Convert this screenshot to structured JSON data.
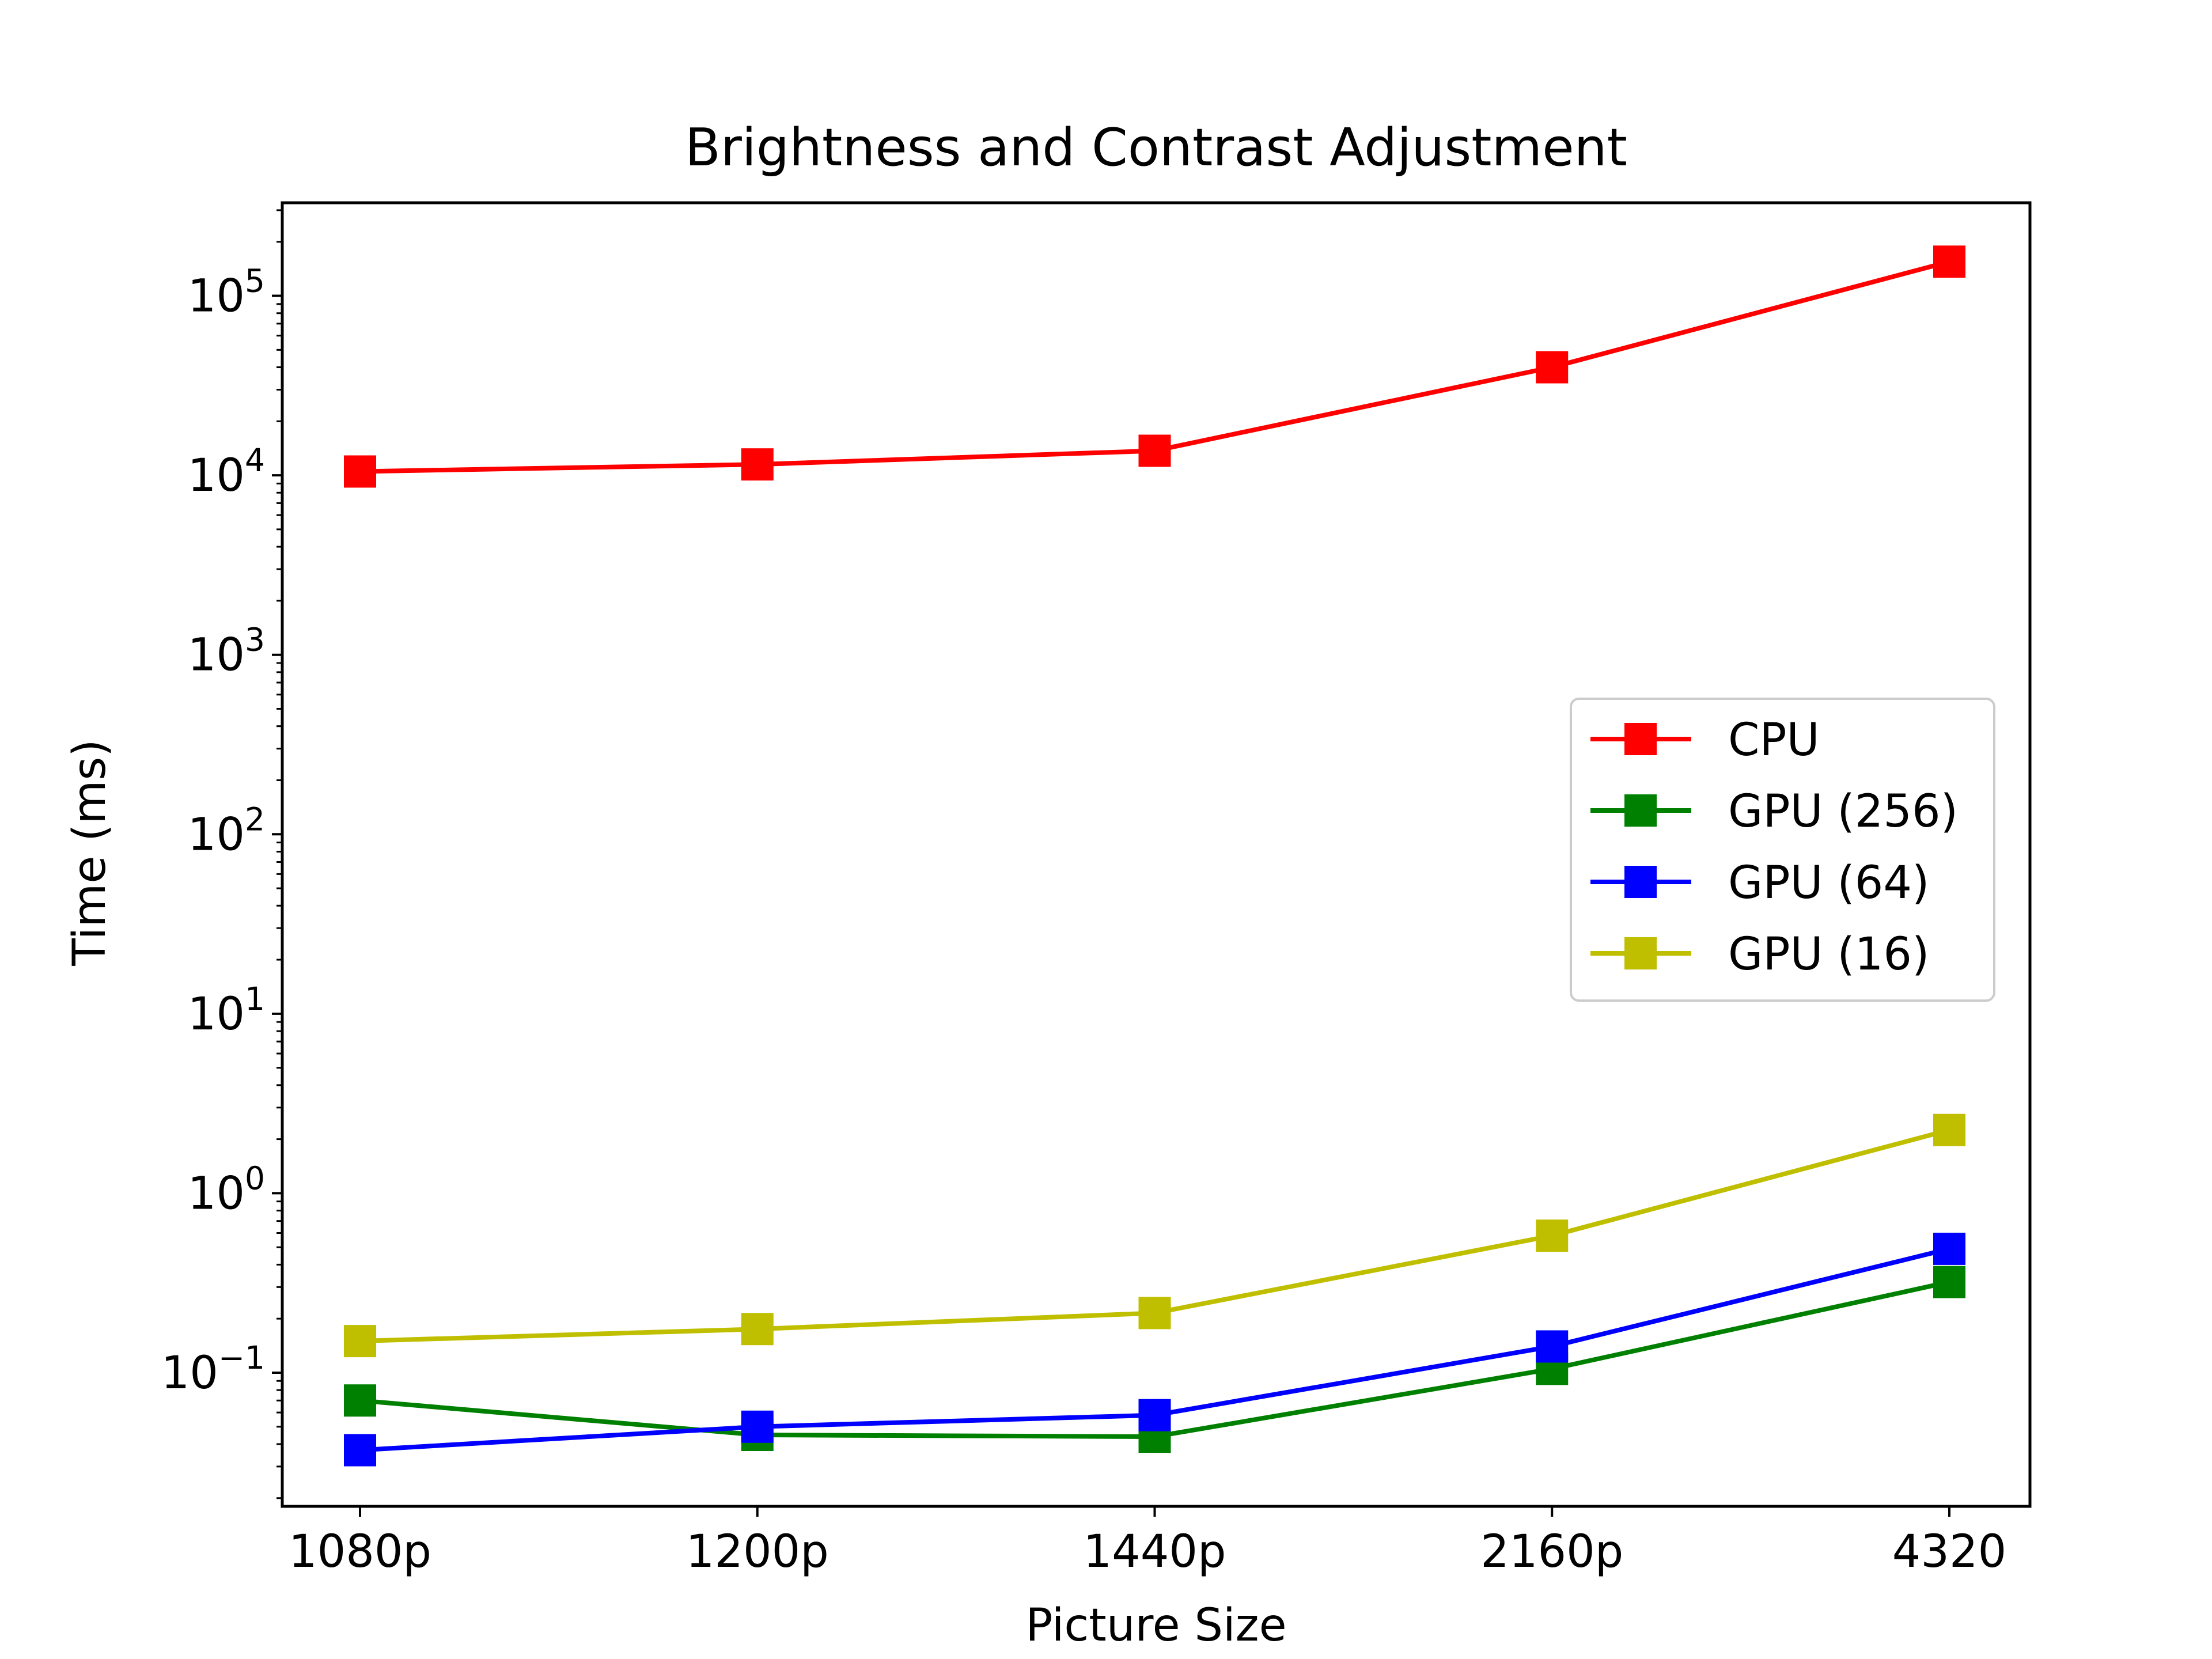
{
  "chart_data": {
    "type": "line",
    "title": "Brightness and Contrast Adjustment",
    "xlabel": "Picture Size",
    "ylabel": "Time (ms)",
    "categories": [
      "1080p",
      "1200p",
      "1440p",
      "2160p",
      "4320"
    ],
    "yscale": "log",
    "ylim": [
      0.018,
      330000
    ],
    "y_ticks": [
      {
        "value": 0.1,
        "base": "10",
        "exp": "−1"
      },
      {
        "value": 1,
        "base": "10",
        "exp": "0"
      },
      {
        "value": 10,
        "base": "10",
        "exp": "1"
      },
      {
        "value": 100,
        "base": "10",
        "exp": "2"
      },
      {
        "value": 1000,
        "base": "10",
        "exp": "3"
      },
      {
        "value": 10000,
        "base": "10",
        "exp": "4"
      },
      {
        "value": 100000,
        "base": "10",
        "exp": "5"
      }
    ],
    "grid": false,
    "legend_position": "center-right",
    "series": [
      {
        "name": "CPU",
        "color": "#ff0000",
        "marker": "square",
        "values": [
          10500,
          11500,
          13700,
          40000,
          155000
        ]
      },
      {
        "name": "GPU (256)",
        "color": "#008000",
        "marker": "square",
        "values": [
          0.07,
          0.045,
          0.044,
          0.105,
          0.32
        ]
      },
      {
        "name": "GPU (64)",
        "color": "#0000ff",
        "marker": "square",
        "values": [
          0.037,
          0.05,
          0.058,
          0.14,
          0.49
        ]
      },
      {
        "name": "GPU (16)",
        "color": "#bfbf00",
        "marker": "square",
        "values": [
          0.15,
          0.175,
          0.215,
          0.58,
          2.25
        ]
      }
    ]
  }
}
